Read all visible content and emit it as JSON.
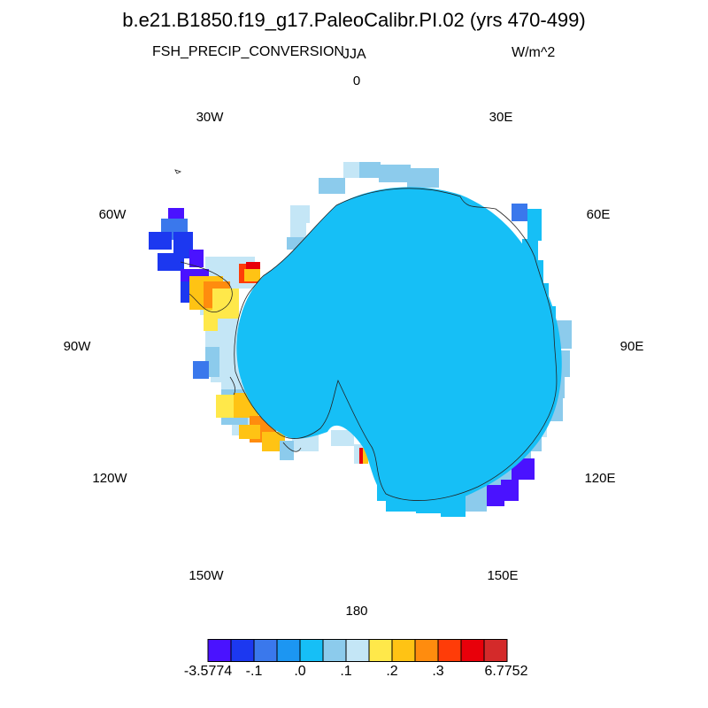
{
  "title": "b.e21.B1850.f19_g17.PaleoCalibr.PI.02 (yrs 470-499)",
  "variable": "FSH_PRECIP_CONVERSION",
  "season": "JJA",
  "units": "W/m^2",
  "longitude_labels": {
    "lon_0": "0",
    "lon_30e": "30E",
    "lon_60e": "60E",
    "lon_90e": "90E",
    "lon_120e": "120E",
    "lon_150e": "150E",
    "lon_180": "180",
    "lon_150w": "150W",
    "lon_120w": "120W",
    "lon_90w": "90W",
    "lon_60w": "60W",
    "lon_30w": "30W"
  },
  "projection": "polar stereographic, south pole",
  "colorbar": {
    "colors": [
      "#4a12ff",
      "#1c38f0",
      "#3a78ec",
      "#1c96f2",
      "#16bff6",
      "#8ccbec",
      "#c4e6f6",
      "#ffe84a",
      "#ffc314",
      "#ff8c0e",
      "#ff3c08",
      "#e8000a",
      "#d42a2a"
    ],
    "labels": {
      "min": "-3.5774",
      "l1": "-.1",
      "l2": ".0",
      "l3": ".1",
      "l4": ".2",
      "l5": ".3",
      "max": "6.7752"
    }
  },
  "colors": {
    "land_fill": "#16bff6",
    "coastline": "#222222"
  }
}
